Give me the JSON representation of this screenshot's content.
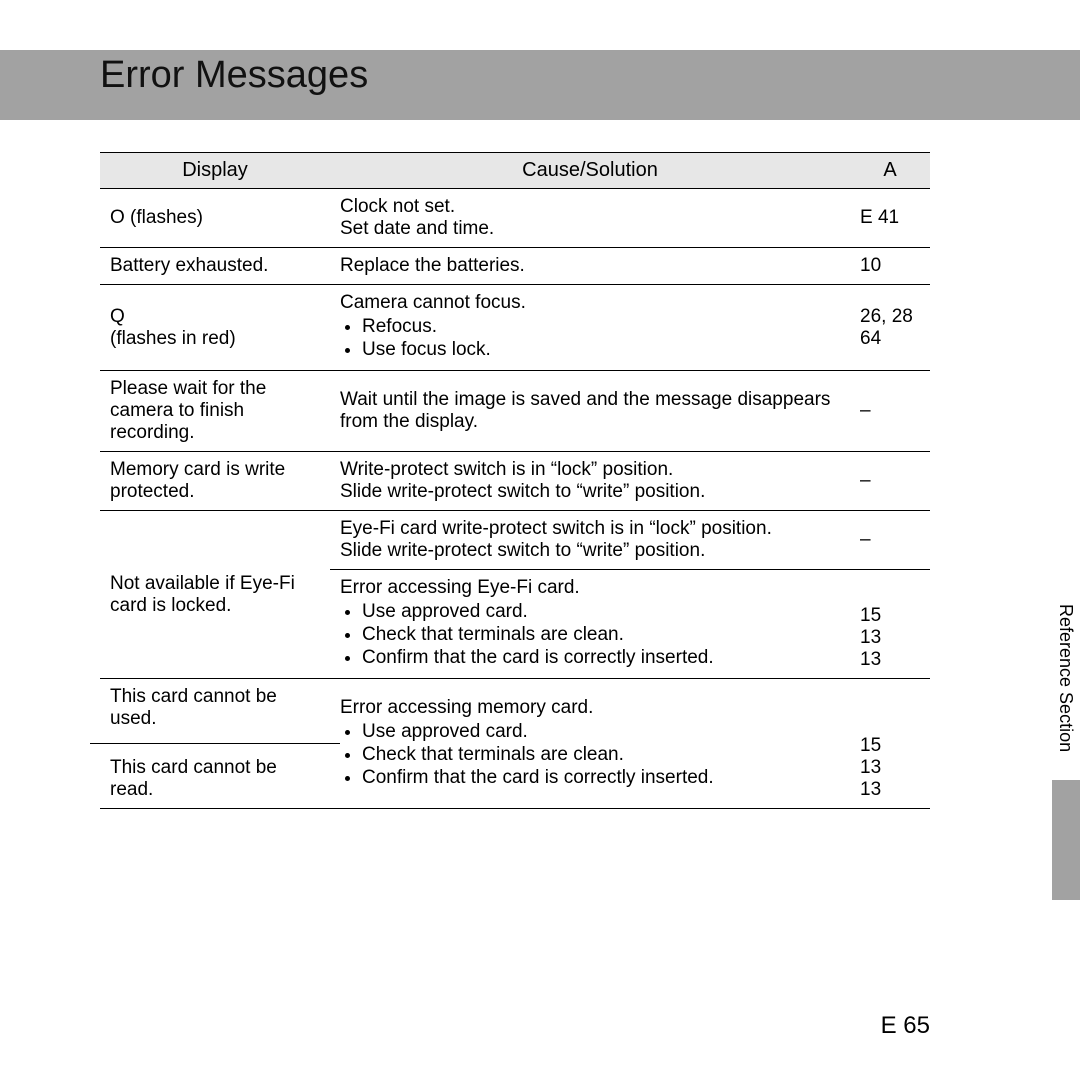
{
  "page": {
    "title": "Error Messages",
    "side_label": "Reference Section",
    "number": "E   65"
  },
  "table": {
    "headers": {
      "display": "Display",
      "cause": "Cause/Solution",
      "ref": "A"
    },
    "rows": [
      {
        "display": "O   (flashes)",
        "cause_lines": [
          "Clock not set.",
          "Set date and time."
        ],
        "ref": "E   41"
      },
      {
        "display": "Battery exhausted.",
        "cause_lines": [
          "Replace the batteries."
        ],
        "ref": "10"
      },
      {
        "display": "Q\n(flashes in red)",
        "cause_intro": "Camera cannot focus.",
        "cause_bullets": [
          "Refocus.",
          "Use focus lock."
        ],
        "ref": "26, 28\n64"
      },
      {
        "display": "Please wait for the camera to finish recording.",
        "cause_lines": [
          "Wait until the image is saved and the message disappears from the display."
        ],
        "ref": "–"
      },
      {
        "display": "Memory card is write protected.",
        "cause_lines": [
          "Write-protect switch is in “lock” position.",
          "Slide write-protect switch to “write” position."
        ],
        "ref": "–"
      }
    ],
    "eyefi_display": "Not available if Eye-Fi card is locked.",
    "eyefi_top_lines": [
      "Eye-Fi card write-protect switch is in “lock” position.",
      "Slide write-protect switch to “write” position."
    ],
    "eyefi_top_ref": "–",
    "eyefi_bot_intro": "Error accessing Eye-Fi card.",
    "eyefi_bot_bullets": [
      "Use approved card.",
      "Check that terminals are clean.",
      "Confirm that the card is correctly inserted."
    ],
    "eyefi_bot_ref": "15\n13\n13",
    "card_used_display": "This card cannot be used.",
    "card_read_display": "This card cannot be read.",
    "card_intro": "Error accessing memory card.",
    "card_bullets": [
      "Use approved card.",
      "Check that terminals are clean.",
      "Confirm that the card is correctly inserted."
    ],
    "card_ref": "15\n13\n13"
  }
}
